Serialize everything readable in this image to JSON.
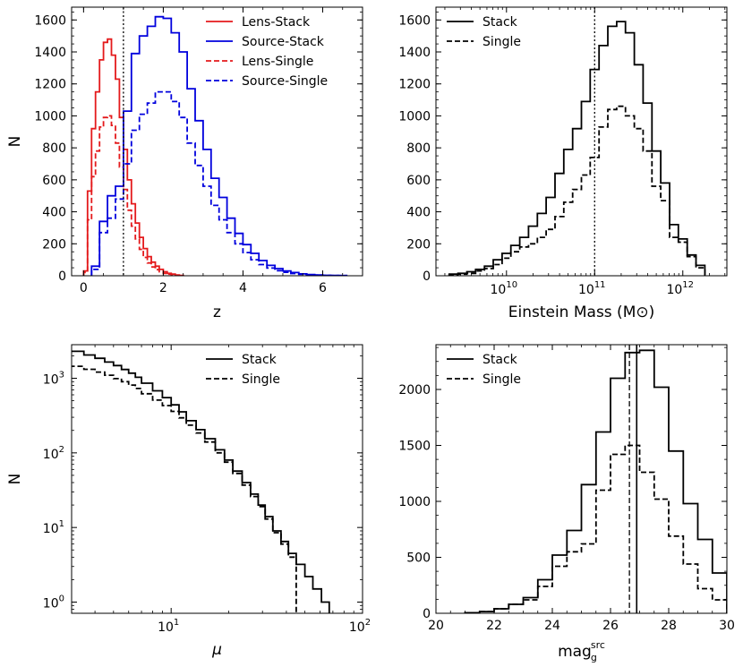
{
  "chart_data": [
    {
      "panel": "top-left",
      "type": "histogram-step",
      "xlabel": "z",
      "ylabel": "N",
      "xlim": [
        -0.3,
        7.0
      ],
      "ylim": [
        0,
        1680
      ],
      "xticks": [
        0,
        2,
        4,
        6
      ],
      "xtick_labels": [
        "0",
        "2",
        "4",
        "6"
      ],
      "yticks": [
        0,
        200,
        400,
        600,
        800,
        1000,
        1200,
        1400,
        1600
      ],
      "ytick_labels": [
        "0",
        "200",
        "400",
        "600",
        "800",
        "1000",
        "1200",
        "1400",
        "1600"
      ],
      "vlines": [
        {
          "x": 1.0,
          "style": "dotted"
        }
      ],
      "legend_position": "top-right",
      "series": [
        {
          "name": "Lens-Stack",
          "color": "#e41a1c",
          "style": "solid",
          "edges": [
            0.0,
            0.1,
            0.2,
            0.3,
            0.4,
            0.5,
            0.6,
            0.7,
            0.8,
            0.9,
            1.0,
            1.1,
            1.2,
            1.3,
            1.4,
            1.5,
            1.6,
            1.7,
            1.8,
            1.9,
            2.0,
            2.1,
            2.2,
            2.3,
            2.4,
            2.5
          ],
          "values": [
            30,
            530,
            920,
            1150,
            1350,
            1460,
            1480,
            1380,
            1230,
            990,
            790,
            600,
            450,
            330,
            240,
            170,
            120,
            85,
            60,
            40,
            25,
            15,
            10,
            5,
            2
          ]
        },
        {
          "name": "Source-Stack",
          "color": "#0000dd",
          "style": "solid",
          "edges": [
            0.2,
            0.4,
            0.6,
            0.8,
            1.0,
            1.2,
            1.4,
            1.6,
            1.8,
            2.0,
            2.2,
            2.4,
            2.6,
            2.8,
            3.0,
            3.2,
            3.4,
            3.6,
            3.8,
            4.0,
            4.2,
            4.4,
            4.6,
            4.8,
            5.0,
            5.2,
            5.4,
            5.6,
            5.8,
            6.0,
            6.2,
            6.4,
            6.6
          ],
          "values": [
            60,
            340,
            500,
            560,
            1030,
            1390,
            1500,
            1560,
            1620,
            1610,
            1520,
            1400,
            1170,
            970,
            790,
            610,
            490,
            360,
            265,
            195,
            140,
            95,
            65,
            45,
            30,
            20,
            12,
            8,
            5,
            3,
            2,
            1
          ]
        },
        {
          "name": "Lens-Single",
          "color": "#e41a1c",
          "style": "dashed",
          "edges": [
            0.0,
            0.1,
            0.2,
            0.3,
            0.4,
            0.5,
            0.6,
            0.7,
            0.8,
            0.9,
            1.0,
            1.1,
            1.2,
            1.3,
            1.4,
            1.5,
            1.6,
            1.7,
            1.8,
            1.9,
            2.0,
            2.1,
            2.2,
            2.3,
            2.4,
            2.5
          ],
          "values": [
            20,
            350,
            620,
            780,
            930,
            990,
            1000,
            940,
            830,
            680,
            540,
            410,
            310,
            230,
            165,
            115,
            80,
            55,
            38,
            25,
            15,
            10,
            5,
            3,
            1
          ]
        },
        {
          "name": "Source-Single",
          "color": "#0000dd",
          "style": "dashed",
          "edges": [
            0.2,
            0.4,
            0.6,
            0.8,
            1.0,
            1.2,
            1.4,
            1.6,
            1.8,
            2.0,
            2.2,
            2.4,
            2.6,
            2.8,
            3.0,
            3.2,
            3.4,
            3.6,
            3.8,
            4.0,
            4.2,
            4.4,
            4.6,
            4.8,
            5.0,
            5.2,
            5.4,
            5.6,
            5.8,
            6.0,
            6.2,
            6.4,
            6.6
          ],
          "values": [
            40,
            270,
            360,
            480,
            700,
            910,
            1010,
            1080,
            1150,
            1150,
            1090,
            990,
            830,
            690,
            560,
            440,
            350,
            270,
            200,
            145,
            100,
            70,
            48,
            32,
            22,
            14,
            9,
            6,
            4,
            2,
            1,
            1
          ]
        }
      ]
    },
    {
      "panel": "top-right",
      "type": "histogram-step",
      "xlabel": "Einstein Mass (M⊙)",
      "xscale": "log",
      "xlim": [
        9.2,
        12.5
      ],
      "ylim": [
        0,
        1680
      ],
      "xticks_log10": [
        10,
        11,
        12
      ],
      "xtick_bases": [
        "10",
        "10",
        "10"
      ],
      "xtick_exps": [
        "10",
        "11",
        "12"
      ],
      "yticks": [
        0,
        200,
        400,
        600,
        800,
        1000,
        1200,
        1400,
        1600
      ],
      "ytick_labels": [
        "0",
        "200",
        "400",
        "600",
        "800",
        "1000",
        "1200",
        "1400",
        "1600"
      ],
      "vlines": [
        {
          "x_log10": 11.0,
          "style": "dotted"
        }
      ],
      "legend_position": "top-left",
      "series": [
        {
          "name": "Stack",
          "color": "#000000",
          "style": "solid",
          "edges_log10": [
            9.35,
            9.45,
            9.55,
            9.65,
            9.75,
            9.85,
            9.95,
            10.05,
            10.15,
            10.25,
            10.35,
            10.45,
            10.55,
            10.65,
            10.75,
            10.85,
            10.95,
            11.05,
            11.15,
            11.25,
            11.35,
            11.45,
            11.55,
            11.65,
            11.75,
            11.85,
            11.95,
            12.05,
            12.15,
            12.25
          ],
          "values": [
            10,
            15,
            25,
            40,
            60,
            100,
            140,
            190,
            240,
            310,
            390,
            490,
            640,
            790,
            920,
            1090,
            1290,
            1440,
            1560,
            1590,
            1520,
            1320,
            1080,
            780,
            580,
            320,
            230,
            130,
            65
          ]
        },
        {
          "name": "Single",
          "color": "#000000",
          "style": "dashed",
          "edges_log10": [
            9.35,
            9.45,
            9.55,
            9.65,
            9.75,
            9.85,
            9.95,
            10.05,
            10.15,
            10.25,
            10.35,
            10.45,
            10.55,
            10.65,
            10.75,
            10.85,
            10.95,
            11.05,
            11.15,
            11.25,
            11.35,
            11.45,
            11.55,
            11.65,
            11.75,
            11.85,
            11.95,
            12.05,
            12.15,
            12.25
          ],
          "values": [
            5,
            10,
            15,
            30,
            45,
            70,
            110,
            150,
            180,
            200,
            240,
            290,
            370,
            460,
            540,
            630,
            740,
            930,
            1040,
            1060,
            1000,
            920,
            780,
            560,
            470,
            240,
            210,
            120,
            50
          ]
        }
      ]
    },
    {
      "panel": "bottom-left",
      "type": "histogram-step",
      "xlabel": "μ",
      "ylabel": "N",
      "xscale": "log",
      "yscale": "log",
      "xlim_log10": [
        0.48,
        2.0
      ],
      "ylim_log10": [
        -0.15,
        3.45
      ],
      "xticks_log10": [
        1,
        2
      ],
      "xtick_bases": [
        "10",
        "10"
      ],
      "xtick_exps": [
        "1",
        "2"
      ],
      "yticks_log10": [
        0,
        1,
        2,
        3
      ],
      "ytick_bases": [
        "10",
        "10",
        "10",
        "10"
      ],
      "ytick_exps": [
        "0",
        "1",
        "2",
        "3"
      ],
      "legend_position": "top-right",
      "series": [
        {
          "name": "Stack",
          "color": "#000000",
          "style": "solid",
          "edges": [
            3.0,
            3.5,
            4.0,
            4.5,
            5.0,
            5.5,
            6.0,
            6.5,
            7.0,
            8.0,
            9.0,
            10.0,
            11.0,
            12.0,
            13.5,
            15.0,
            17.0,
            19.0,
            21.0,
            23.5,
            26.0,
            28.5,
            31.0,
            34.0,
            37.5,
            41.0,
            45.0,
            50.0,
            55.0,
            61.0,
            67.0,
            73.0
          ],
          "values": [
            2300,
            2050,
            1850,
            1650,
            1480,
            1310,
            1170,
            1030,
            860,
            680,
            550,
            440,
            355,
            270,
            205,
            155,
            110,
            80,
            57,
            40,
            28,
            20,
            14,
            9,
            6.5,
            4.5,
            3.2,
            2.2,
            1.5,
            1.0,
            0.7
          ]
        },
        {
          "name": "Single",
          "color": "#000000",
          "style": "dashed",
          "edges": [
            3.0,
            3.5,
            4.0,
            4.5,
            5.0,
            5.5,
            6.0,
            6.5,
            7.0,
            8.0,
            9.0,
            10.0,
            11.0,
            12.0,
            13.5,
            15.0,
            17.0,
            19.0,
            21.0,
            23.5,
            26.0,
            28.5,
            31.0,
            34.0,
            37.5,
            41.0,
            45.0
          ],
          "values": [
            1450,
            1320,
            1210,
            1100,
            990,
            900,
            810,
            730,
            620,
            510,
            430,
            360,
            295,
            235,
            185,
            140,
            100,
            75,
            53,
            37,
            26,
            19,
            13,
            8.5,
            6.0,
            4.0
          ]
        }
      ]
    },
    {
      "panel": "bottom-right",
      "type": "histogram-step",
      "xlabel": "mag",
      "xlabel_sub": "g",
      "xlabel_sup": "src",
      "xlim": [
        20,
        30
      ],
      "ylim": [
        0,
        2400
      ],
      "xticks": [
        20,
        22,
        24,
        26,
        28,
        30
      ],
      "xtick_labels": [
        "20",
        "22",
        "24",
        "26",
        "28",
        "30"
      ],
      "yticks": [
        0,
        500,
        1000,
        1500,
        2000
      ],
      "ytick_labels": [
        "0",
        "500",
        "1000",
        "1500",
        "2000"
      ],
      "vlines": [
        {
          "x": 26.9,
          "style": "solid"
        },
        {
          "x": 26.65,
          "style": "dashed"
        }
      ],
      "legend_position": "top-left",
      "series": [
        {
          "name": "Stack",
          "color": "#000000",
          "style": "solid",
          "edges": [
            21.0,
            21.5,
            22.0,
            22.5,
            23.0,
            23.5,
            24.0,
            24.5,
            25.0,
            25.5,
            26.0,
            26.5,
            27.0,
            27.5,
            28.0,
            28.5,
            29.0,
            29.5,
            30.0
          ],
          "values": [
            5,
            15,
            40,
            80,
            140,
            300,
            520,
            740,
            1150,
            1620,
            2100,
            2330,
            2350,
            2020,
            1450,
            980,
            660,
            360
          ]
        },
        {
          "name": "Single",
          "color": "#000000",
          "style": "dashed",
          "edges": [
            21.0,
            21.5,
            22.0,
            22.5,
            23.0,
            23.5,
            24.0,
            24.5,
            25.0,
            25.5,
            26.0,
            26.5,
            27.0,
            27.5,
            28.0,
            28.5,
            29.0,
            29.5,
            30.0
          ],
          "values": [
            5,
            15,
            40,
            80,
            120,
            240,
            420,
            550,
            620,
            1100,
            1420,
            1500,
            1260,
            1020,
            690,
            440,
            220,
            120
          ]
        }
      ]
    }
  ]
}
